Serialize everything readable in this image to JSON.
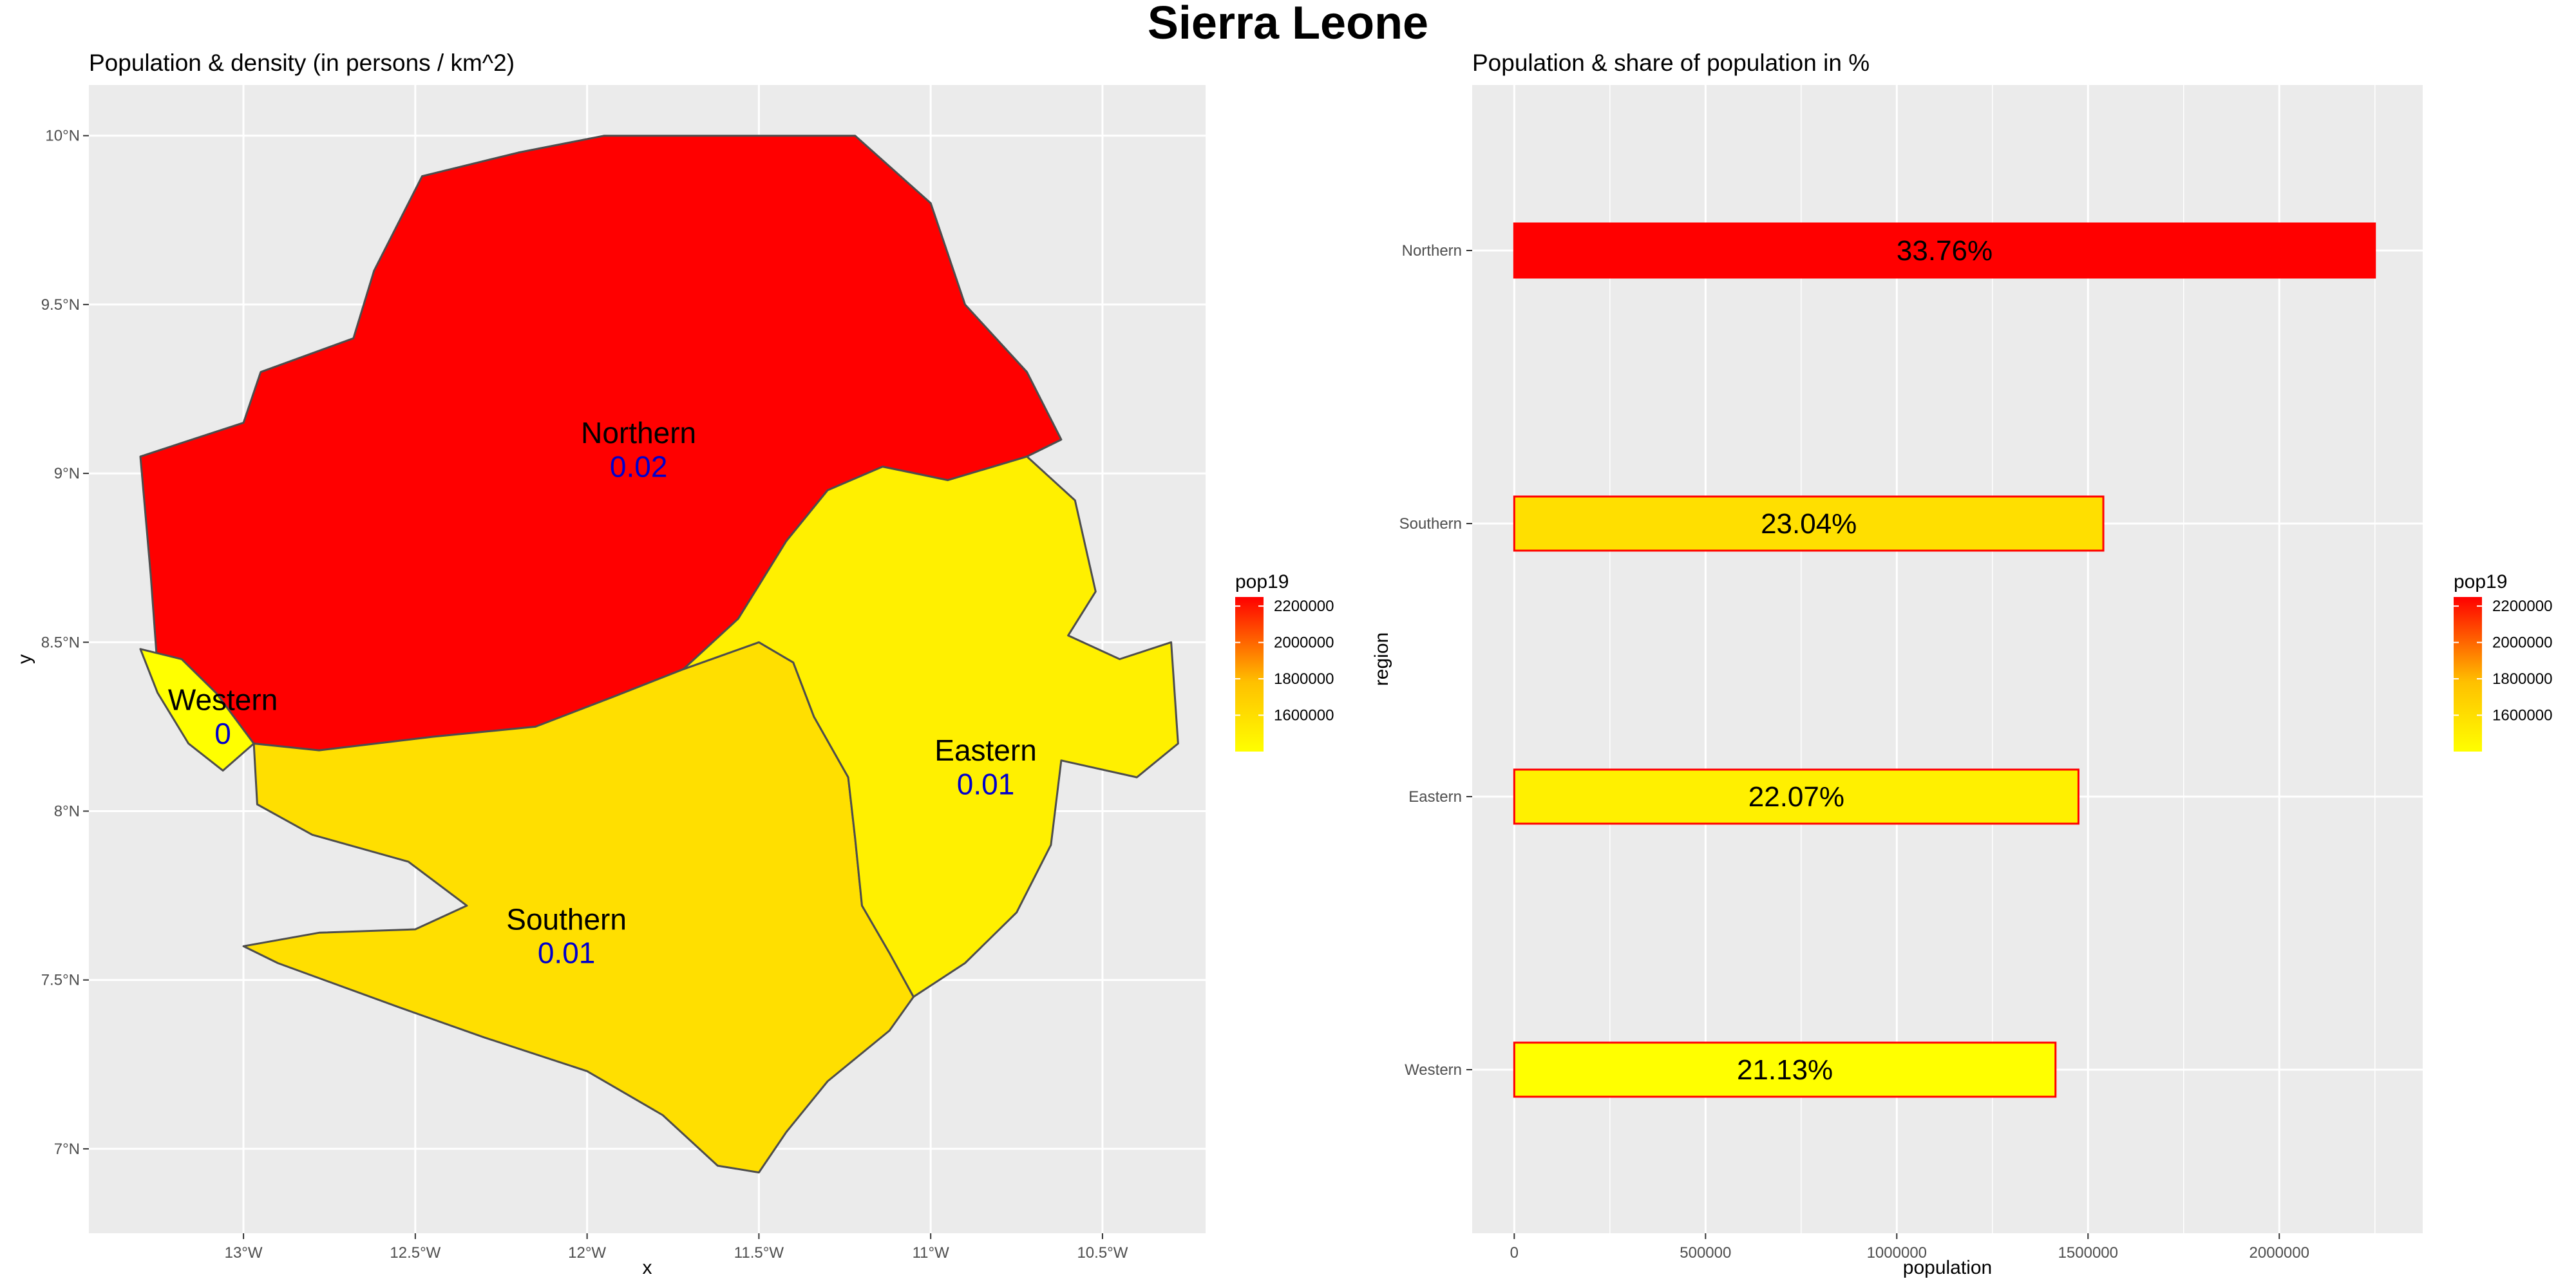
{
  "page": {
    "title": "Sierra Leone"
  },
  "chart_data": [
    {
      "type": "map",
      "title": "Population & density (in persons / km^2)",
      "xlabel": "x",
      "ylabel": "y",
      "x_ticks": [
        "13°W",
        "12.5°W",
        "12°W",
        "11.5°W",
        "11°W",
        "10.5°W"
      ],
      "x_tick_values": [
        -13,
        -12.5,
        -12,
        -11.5,
        -11,
        -10.5
      ],
      "y_ticks": [
        "7°N",
        "7.5°N",
        "8°N",
        "8.5°N",
        "9°N",
        "9.5°N",
        "10°N"
      ],
      "y_tick_values": [
        7,
        7.5,
        8,
        8.5,
        9,
        9.5,
        10
      ],
      "xlim": [
        -13.45,
        -10.2
      ],
      "ylim": [
        6.75,
        10.15
      ],
      "fill_variable": "pop19",
      "grid": true,
      "legend_position": "right",
      "regions": [
        {
          "name": "Northern",
          "density": "0.02",
          "pop19": 2250000,
          "fill": "#ff0000"
        },
        {
          "name": "Southern",
          "density": "0.01",
          "pop19": 1540000,
          "fill": "#ffdf00"
        },
        {
          "name": "Eastern",
          "density": "0.01",
          "pop19": 1475000,
          "fill": "#fff000"
        },
        {
          "name": "Western",
          "density": "0",
          "pop19": 1415000,
          "fill": "#ffff00"
        }
      ]
    },
    {
      "type": "bar",
      "orientation": "horizontal",
      "title": "Population & share of population in %",
      "xlabel": "population",
      "ylabel": "region",
      "categories": [
        "Northern",
        "Southern",
        "Eastern",
        "Western"
      ],
      "values": [
        2250000,
        1540000,
        1475000,
        1415000
      ],
      "labels": [
        "33.76%",
        "23.04%",
        "22.07%",
        "21.13%"
      ],
      "fills": [
        "#ff0000",
        "#ffdf00",
        "#fff000",
        "#ffff00"
      ],
      "bar_outline": "#ff0000",
      "x_ticks": [
        "0",
        "500000",
        "1000000",
        "1500000",
        "2000000"
      ],
      "x_tick_values": [
        0,
        500000,
        1000000,
        1500000,
        2000000
      ],
      "xlim": [
        -110000,
        2375000
      ],
      "grid": true,
      "legend_position": "right"
    }
  ],
  "legend": {
    "title": "pop19",
    "ticks": [
      "2200000",
      "2000000",
      "1800000",
      "1600000"
    ],
    "tick_values": [
      2200000,
      2000000,
      1800000,
      1600000
    ],
    "range": [
      1400000,
      2250000
    ],
    "colors": [
      "#ffff00",
      "#ff0000"
    ]
  },
  "colors": {
    "panel_background": "#ebebeb",
    "grid": "#ffffff",
    "border": "#4d4d4d",
    "density_label": "#0000cd"
  }
}
